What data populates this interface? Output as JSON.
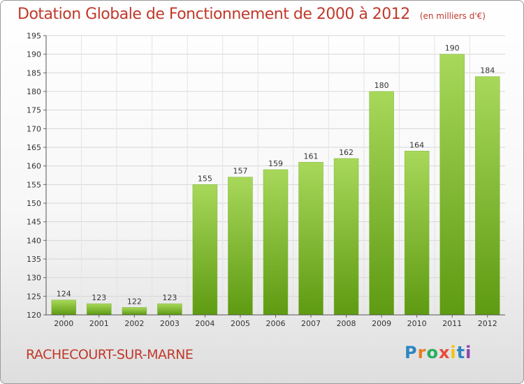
{
  "title": "Dotation Globale de Fonctionnement de 2000 à 2012",
  "unit": "(en milliers d'€)",
  "commune": "RACHECOURT-SUR-MARNE",
  "brand": {
    "letters": [
      "P",
      "r",
      "o",
      "x",
      "i",
      "t",
      "i"
    ],
    "colors": [
      "#2e86c1",
      "#e67e22",
      "#27ae60",
      "#e74c3c",
      "#f1c40f",
      "#2e86c1",
      "#8e44ad"
    ]
  },
  "chart_data": {
    "type": "bar",
    "categories": [
      "2000",
      "2001",
      "2002",
      "2003",
      "2004",
      "2005",
      "2006",
      "2007",
      "2008",
      "2009",
      "2010",
      "2011",
      "2012"
    ],
    "values": [
      124,
      123,
      122,
      123,
      155,
      157,
      159,
      161,
      162,
      180,
      164,
      190,
      184
    ],
    "ylim": [
      120,
      195
    ],
    "yticks": [
      120,
      125,
      130,
      135,
      140,
      145,
      150,
      155,
      160,
      165,
      170,
      175,
      180,
      185,
      190,
      195
    ],
    "grid": true,
    "colors": {
      "bar_top": "#a8d85a",
      "bar_bottom": "#5e9a12",
      "title": "#c0392b"
    }
  }
}
